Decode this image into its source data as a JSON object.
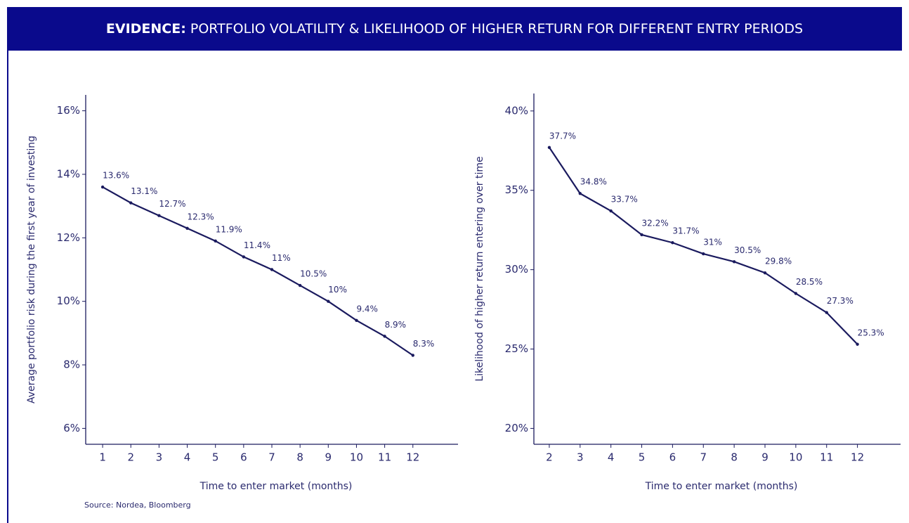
{
  "header": {
    "lead": "EVIDENCE:",
    "title": "PORTFOLIO VOLATILITY & LIKELIHOOD OF HIGHER RETURN FOR DIFFERENT ENTRY PERIODS"
  },
  "source": "Source: Nordea, Bloomberg",
  "chart_data": [
    {
      "type": "line",
      "x_label": "Time to enter market (months)",
      "y_label": "Average portfolio risk during the first year of investing",
      "x": [
        1,
        2,
        3,
        4,
        5,
        6,
        7,
        8,
        9,
        10,
        11,
        12
      ],
      "series": [
        {
          "color": "#1a1a5e",
          "values": [
            13.6,
            13.1,
            12.7,
            12.3,
            11.9,
            11.4,
            11,
            10.5,
            10,
            9.4,
            8.9,
            8.3
          ],
          "value_labels": [
            "13.6%",
            "13.1%",
            "12.7%",
            "12.3%",
            "11.9%",
            "11.4%",
            "11%",
            "10.5%",
            "10%",
            "9.4%",
            "8.9%",
            "8.3%"
          ]
        }
      ],
      "xlim": [
        0.4,
        13.6
      ],
      "xticks": [
        1,
        2,
        3,
        4,
        5,
        6,
        7,
        8,
        9,
        10,
        11,
        12
      ],
      "ylim": [
        5.5,
        16.5
      ],
      "yticks": [
        {
          "value": 6,
          "label": "6%"
        },
        {
          "value": 8,
          "label": "8%"
        },
        {
          "value": 10,
          "label": "10%"
        },
        {
          "value": 12,
          "label": "12%"
        },
        {
          "value": 14,
          "label": "14%"
        },
        {
          "value": 16,
          "label": "16%"
        }
      ],
      "grid": false
    },
    {
      "type": "line",
      "x_label": "Time to enter market (months)",
      "y_label": "Likelihood of higher return entering over time",
      "x": [
        2,
        3,
        4,
        5,
        6,
        7,
        8,
        9,
        10,
        11,
        12
      ],
      "series": [
        {
          "color": "#1a1a5e",
          "values": [
            37.7,
            34.8,
            33.7,
            32.2,
            31.7,
            31,
            30.5,
            29.8,
            28.5,
            27.3,
            25.3
          ],
          "value_labels": [
            "37.7%",
            "34.8%",
            "33.7%",
            "32.2%",
            "31.7%",
            "31%",
            "30.5%",
            "29.8%",
            "28.5%",
            "27.3%",
            "25.3%"
          ]
        }
      ],
      "xlim": [
        1.5,
        13.4
      ],
      "xticks": [
        2,
        3,
        4,
        5,
        6,
        7,
        8,
        9,
        10,
        11,
        12
      ],
      "ylim": [
        19,
        41.1
      ],
      "yticks": [
        {
          "value": 20,
          "label": "20%"
        },
        {
          "value": 25,
          "label": "25%"
        },
        {
          "value": 30,
          "label": "30%"
        },
        {
          "value": 35,
          "label": "35%"
        },
        {
          "value": 40,
          "label": "40%"
        }
      ],
      "grid": false
    }
  ]
}
